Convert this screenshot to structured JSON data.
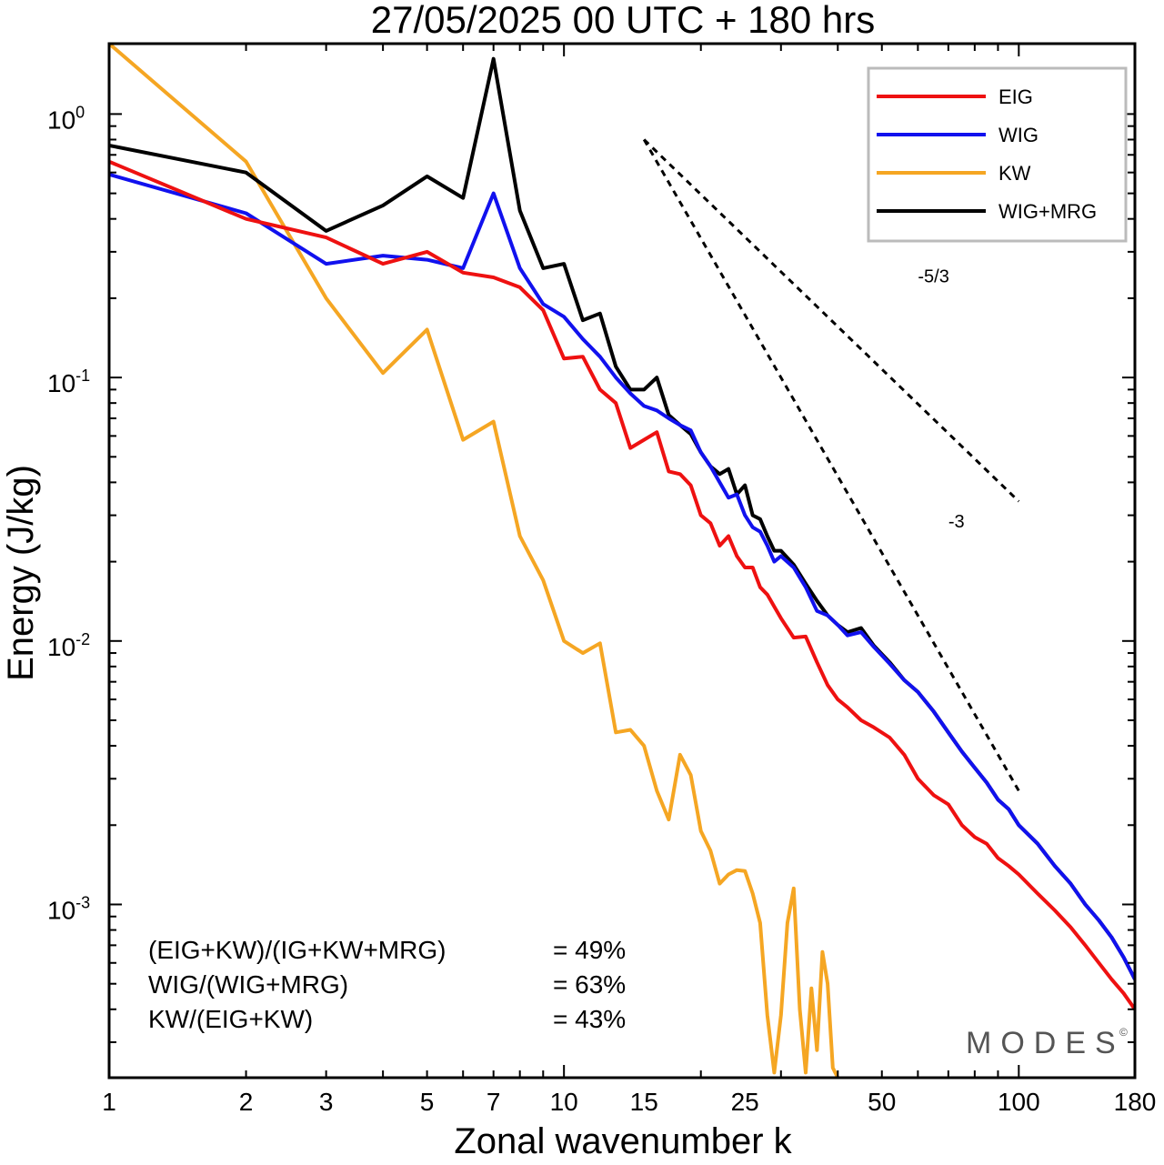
{
  "chart_data": {
    "type": "line",
    "title": "27/05/2025  00 UTC  + 180 hrs",
    "xlabel": "Zonal wavenumber k",
    "ylabel": "Energy (J/kg)",
    "x_scale": "log",
    "y_scale": "log",
    "xlim": [
      1,
      180
    ],
    "ylim": [
      0.00022,
      1.85
    ],
    "x_ticks": [
      1,
      2,
      3,
      5,
      7,
      10,
      15,
      25,
      50,
      100,
      180
    ],
    "x_tick_labels": [
      "1",
      "2",
      "3",
      "5",
      "7",
      "10",
      "15",
      "25",
      "50",
      "100",
      "180"
    ],
    "y_ticks": [
      {
        "value": 1,
        "base": "10",
        "exp": "0"
      },
      {
        "value": 0.1,
        "base": "10",
        "exp": "-1"
      },
      {
        "value": 0.01,
        "base": "10",
        "exp": "-2"
      },
      {
        "value": 0.001,
        "base": "10",
        "exp": "-3"
      }
    ],
    "grid": false,
    "legend_position": "top-right",
    "series": [
      {
        "name": "EIG",
        "color": "#ee1111",
        "points": [
          [
            1,
            0.66
          ],
          [
            2,
            0.4
          ],
          [
            3,
            0.34
          ],
          [
            4,
            0.27
          ],
          [
            5,
            0.3
          ],
          [
            6,
            0.25
          ],
          [
            7,
            0.24
          ],
          [
            8,
            0.22
          ],
          [
            9,
            0.18
          ],
          [
            10,
            0.118
          ],
          [
            11,
            0.12
          ],
          [
            12,
            0.09
          ],
          [
            13,
            0.08
          ],
          [
            14,
            0.054
          ],
          [
            15,
            0.058
          ],
          [
            16,
            0.062
          ],
          [
            17,
            0.044
          ],
          [
            18,
            0.043
          ],
          [
            19,
            0.039
          ],
          [
            20,
            0.03
          ],
          [
            21,
            0.028
          ],
          [
            22,
            0.023
          ],
          [
            23,
            0.025
          ],
          [
            24,
            0.021
          ],
          [
            25,
            0.019
          ],
          [
            26,
            0.019
          ],
          [
            27,
            0.016
          ],
          [
            28,
            0.015
          ],
          [
            29,
            0.0135
          ],
          [
            30,
            0.0122
          ],
          [
            32,
            0.0103
          ],
          [
            34,
            0.0104
          ],
          [
            36,
            0.0083
          ],
          [
            38,
            0.0068
          ],
          [
            40,
            0.006
          ],
          [
            42,
            0.0056
          ],
          [
            45,
            0.005
          ],
          [
            48,
            0.0047
          ],
          [
            52,
            0.0043
          ],
          [
            56,
            0.0037
          ],
          [
            60,
            0.003
          ],
          [
            65,
            0.0026
          ],
          [
            70,
            0.0024
          ],
          [
            75,
            0.002
          ],
          [
            80,
            0.0018
          ],
          [
            85,
            0.0017
          ],
          [
            90,
            0.0015
          ],
          [
            95,
            0.0014
          ],
          [
            100,
            0.0013
          ],
          [
            110,
            0.0011
          ],
          [
            120,
            0.00095
          ],
          [
            130,
            0.00082
          ],
          [
            140,
            0.0007
          ],
          [
            150,
            0.0006
          ],
          [
            160,
            0.00052
          ],
          [
            170,
            0.00046
          ],
          [
            180,
            0.0004
          ]
        ]
      },
      {
        "name": "WIG",
        "color": "#1111ee",
        "points": [
          [
            1,
            0.59
          ],
          [
            2,
            0.42
          ],
          [
            3,
            0.27
          ],
          [
            4,
            0.29
          ],
          [
            5,
            0.28
          ],
          [
            6,
            0.26
          ],
          [
            7,
            0.5
          ],
          [
            8,
            0.26
          ],
          [
            9,
            0.19
          ],
          [
            10,
            0.17
          ],
          [
            11,
            0.14
          ],
          [
            12,
            0.12
          ],
          [
            13,
            0.1
          ],
          [
            14,
            0.087
          ],
          [
            15,
            0.078
          ],
          [
            16,
            0.075
          ],
          [
            17,
            0.07
          ],
          [
            18,
            0.066
          ],
          [
            19,
            0.063
          ],
          [
            20,
            0.052
          ],
          [
            21,
            0.046
          ],
          [
            22,
            0.04
          ],
          [
            23,
            0.035
          ],
          [
            24,
            0.036
          ],
          [
            25,
            0.03
          ],
          [
            26,
            0.027
          ],
          [
            27,
            0.026
          ],
          [
            28,
            0.023
          ],
          [
            29,
            0.02
          ],
          [
            30,
            0.021
          ],
          [
            32,
            0.019
          ],
          [
            34,
            0.016
          ],
          [
            36,
            0.013
          ],
          [
            38,
            0.0125
          ],
          [
            40,
            0.0115
          ],
          [
            42,
            0.0105
          ],
          [
            45,
            0.0108
          ],
          [
            48,
            0.0095
          ],
          [
            52,
            0.0082
          ],
          [
            56,
            0.0071
          ],
          [
            60,
            0.0064
          ],
          [
            65,
            0.0054
          ],
          [
            70,
            0.0045
          ],
          [
            75,
            0.0038
          ],
          [
            80,
            0.0033
          ],
          [
            85,
            0.0029
          ],
          [
            90,
            0.0025
          ],
          [
            95,
            0.0023
          ],
          [
            100,
            0.002
          ],
          [
            110,
            0.0017
          ],
          [
            120,
            0.0014
          ],
          [
            130,
            0.0012
          ],
          [
            140,
            0.001
          ],
          [
            150,
            0.00087
          ],
          [
            160,
            0.00075
          ],
          [
            170,
            0.00063
          ],
          [
            180,
            0.00052
          ]
        ]
      },
      {
        "name": "KW",
        "color": "#f5a623",
        "points": [
          [
            1,
            1.85
          ],
          [
            2,
            0.66
          ],
          [
            3,
            0.2
          ],
          [
            4,
            0.104
          ],
          [
            5,
            0.152
          ],
          [
            6,
            0.058
          ],
          [
            7,
            0.068
          ],
          [
            8,
            0.025
          ],
          [
            9,
            0.017
          ],
          [
            10,
            0.01
          ],
          [
            11,
            0.009
          ],
          [
            12,
            0.0098
          ],
          [
            13,
            0.0045
          ],
          [
            14,
            0.0046
          ],
          [
            15,
            0.004
          ],
          [
            16,
            0.0027
          ],
          [
            17,
            0.0021
          ],
          [
            18,
            0.0037
          ],
          [
            19,
            0.0031
          ],
          [
            20,
            0.0019
          ],
          [
            21,
            0.0016
          ],
          [
            22,
            0.0012
          ],
          [
            23,
            0.0013
          ],
          [
            24,
            0.00135
          ],
          [
            25,
            0.00134
          ],
          [
            26,
            0.0011
          ],
          [
            27,
            0.00085
          ],
          [
            28,
            0.00038
          ],
          [
            29,
            0.00023
          ],
          [
            30,
            0.00038
          ],
          [
            31,
            0.00085
          ],
          [
            32,
            0.00115
          ],
          [
            33,
            0.0004
          ],
          [
            34,
            0.00023
          ],
          [
            35,
            0.00048
          ],
          [
            36,
            0.00028
          ],
          [
            37,
            0.00066
          ],
          [
            38,
            0.0005
          ],
          [
            39,
            0.00024
          ],
          [
            40,
            0.00022
          ]
        ]
      },
      {
        "name": "WIG+MRG",
        "color": "#000000",
        "points": [
          [
            1,
            0.76
          ],
          [
            2,
            0.6
          ],
          [
            3,
            0.36
          ],
          [
            4,
            0.45
          ],
          [
            5,
            0.58
          ],
          [
            6,
            0.48
          ],
          [
            7,
            1.62
          ],
          [
            8,
            0.43
          ],
          [
            9,
            0.26
          ],
          [
            10,
            0.27
          ],
          [
            11,
            0.165
          ],
          [
            12,
            0.175
          ],
          [
            13,
            0.11
          ],
          [
            14,
            0.09
          ],
          [
            15,
            0.09
          ],
          [
            16,
            0.1
          ],
          [
            17,
            0.072
          ],
          [
            18,
            0.066
          ],
          [
            19,
            0.061
          ],
          [
            20,
            0.052
          ],
          [
            21,
            0.046
          ],
          [
            22,
            0.043
          ],
          [
            23,
            0.045
          ],
          [
            24,
            0.036
          ],
          [
            25,
            0.039
          ],
          [
            26,
            0.03
          ],
          [
            27,
            0.029
          ],
          [
            28,
            0.025
          ],
          [
            29,
            0.022
          ],
          [
            30,
            0.022
          ],
          [
            32,
            0.0195
          ],
          [
            34,
            0.0165
          ],
          [
            36,
            0.0142
          ],
          [
            38,
            0.0125
          ],
          [
            40,
            0.0115
          ],
          [
            42,
            0.0108
          ],
          [
            45,
            0.0112
          ],
          [
            48,
            0.0096
          ],
          [
            52,
            0.0083
          ],
          [
            56,
            0.0071
          ],
          [
            60,
            0.0064
          ],
          [
            65,
            0.0054
          ],
          [
            70,
            0.0045
          ],
          [
            75,
            0.0038
          ],
          [
            80,
            0.0033
          ],
          [
            85,
            0.0029
          ],
          [
            90,
            0.0025
          ],
          [
            95,
            0.0023
          ],
          [
            100,
            0.002
          ],
          [
            110,
            0.0017
          ],
          [
            120,
            0.0014
          ],
          [
            130,
            0.0012
          ],
          [
            140,
            0.001
          ],
          [
            150,
            0.00087
          ],
          [
            160,
            0.00075
          ],
          [
            170,
            0.00063
          ],
          [
            180,
            0.00052
          ]
        ]
      }
    ],
    "reference_lines": [
      {
        "label": "-5/3",
        "slope": -1.6667,
        "x": [
          15,
          100
        ],
        "y_start": 0.8,
        "label_at": [
          60,
          0.23
        ]
      },
      {
        "label": "-3",
        "slope": -3,
        "x": [
          15,
          100
        ],
        "y_start": 0.8,
        "label_at": [
          70,
          0.027
        ]
      }
    ],
    "annotations": [
      {
        "label": "(EIG+KW)/(IG+KW+MRG)",
        "value": "= 49%"
      },
      {
        "label": "WIG/(WIG+MRG)",
        "value": "= 63%"
      },
      {
        "label": "KW/(EIG+KW)",
        "value": "= 43%"
      }
    ],
    "watermark": {
      "text": "MODES",
      "mark": "©"
    }
  }
}
